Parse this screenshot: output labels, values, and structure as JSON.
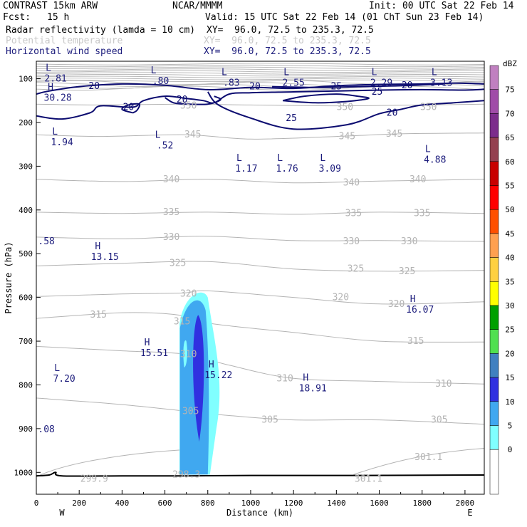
{
  "header": {
    "model": "CONTRAST 15km ARW",
    "org": "NCAR/MMMM",
    "init": "Init: 00 UTC Sat 22 Feb 14",
    "fcst_label": "Fcst:",
    "fcst_value": "15 h",
    "valid": "Valid: 15 UTC Sat 22 Feb 14 (01 ChT Sun 23 Feb 14)",
    "fields": [
      {
        "name": "Radar reflectivity (lamda = 10 cm)",
        "xy": "XY=  96.0, 72.5 to 235.3, 72.5"
      },
      {
        "name": "Potential temperature",
        "xy": "XY=  96.0, 72.5 to 235.3, 72.5"
      },
      {
        "name": "Horizontal wind speed",
        "xy": "XY=  96.0, 72.5 to 235.3, 72.5"
      }
    ]
  },
  "chart_data": {
    "type": "cross-section",
    "xlabel": "Distance (km)",
    "ylabel": "Pressure (hPa)",
    "xlim": [
      0,
      2090
    ],
    "ylim": [
      1050,
      60
    ],
    "x_ticks": [
      0,
      200,
      400,
      600,
      800,
      1000,
      1200,
      1400,
      1600,
      1800,
      2000
    ],
    "y_ticks": [
      100,
      200,
      300,
      400,
      500,
      600,
      700,
      800,
      900,
      1000
    ],
    "x_end_labels": {
      "left": "W",
      "right": "E"
    },
    "colorbar": {
      "unit": "dBZ",
      "levels": [
        {
          "label": "75",
          "color": "#c080c0"
        },
        {
          "label": "70",
          "color": "#a04ca8"
        },
        {
          "label": "65",
          "color": "#7c2c8c"
        },
        {
          "label": "60",
          "color": "#944050"
        },
        {
          "label": "55",
          "color": "#c80000"
        },
        {
          "label": "50",
          "color": "#ff0000"
        },
        {
          "label": "45",
          "color": "#ff5000"
        },
        {
          "label": "40",
          "color": "#ffa050"
        },
        {
          "label": "35",
          "color": "#ffd040"
        },
        {
          "label": "30",
          "color": "#ffff00"
        },
        {
          "label": "25",
          "color": "#00a000"
        },
        {
          "label": "20",
          "color": "#50e050"
        },
        {
          "label": "15",
          "color": "#4080c0"
        },
        {
          "label": "10",
          "color": "#3030e0"
        },
        {
          "label": "5",
          "color": "#40a8f0"
        },
        {
          "label": "0",
          "color": "#80ffff"
        }
      ],
      "bottom_color": "#ffffff"
    },
    "theta_contours": [
      {
        "label": "350",
        "x": [
          0,
          300,
          700,
          1000,
          1400,
          1800,
          2090
        ],
        "p": [
          158,
          160,
          158,
          160,
          162,
          160,
          158
        ]
      },
      {
        "label": "345",
        "x": [
          0,
          300,
          700,
          1000,
          1400,
          1700,
          2090
        ],
        "p": [
          228,
          232,
          228,
          238,
          232,
          226,
          224
        ]
      },
      {
        "label": "340",
        "x": [
          0,
          400,
          800,
          1200,
          1600,
          2090
        ],
        "p": [
          330,
          335,
          330,
          338,
          334,
          330
        ]
      },
      {
        "label": "335",
        "x": [
          0,
          400,
          800,
          1200,
          1600,
          2090
        ],
        "p": [
          405,
          408,
          405,
          410,
          405,
          408
        ]
      },
      {
        "label": "330",
        "x": [
          0,
          400,
          800,
          1200,
          1600,
          2090
        ],
        "p": [
          462,
          466,
          460,
          470,
          470,
          472
        ]
      },
      {
        "label": "325",
        "x": [
          0,
          400,
          800,
          1200,
          1600,
          2090
        ],
        "p": [
          528,
          522,
          518,
          535,
          540,
          538
        ]
      },
      {
        "label": "320",
        "x": [
          0,
          400,
          680,
          800,
          1200,
          1600,
          2090
        ],
        "p": [
          598,
          592,
          590,
          585,
          600,
          615,
          610
        ]
      },
      {
        "label": "315",
        "x": [
          0,
          400,
          660,
          820,
          1200,
          1600,
          2090
        ],
        "p": [
          648,
          635,
          640,
          660,
          680,
          700,
          702
        ]
      },
      {
        "label": "310",
        "x": [
          0,
          400,
          700,
          900,
          1200,
          1600,
          2090
        ],
        "p": [
          712,
          722,
          730,
          755,
          785,
          792,
          798
        ]
      },
      {
        "label": "305",
        "x": [
          0,
          400,
          700,
          900,
          1200,
          1600,
          2090
        ],
        "p": [
          830,
          845,
          860,
          870,
          880,
          880,
          890
        ]
      }
    ],
    "theta_labels": [
      {
        "text": "350",
        "x": 710,
        "p": 162
      },
      {
        "text": "350",
        "x": 1440,
        "p": 165
      },
      {
        "text": "350",
        "x": 1830,
        "p": 165
      },
      {
        "text": "345",
        "x": 730,
        "p": 228
      },
      {
        "text": "345",
        "x": 1450,
        "p": 232
      },
      {
        "text": "345",
        "x": 1670,
        "p": 226
      },
      {
        "text": "340",
        "x": 630,
        "p": 330
      },
      {
        "text": "340",
        "x": 1470,
        "p": 338
      },
      {
        "text": "340",
        "x": 1780,
        "p": 330
      },
      {
        "text": "335",
        "x": 630,
        "p": 405
      },
      {
        "text": "335",
        "x": 1480,
        "p": 408
      },
      {
        "text": "335",
        "x": 1800,
        "p": 408
      },
      {
        "text": "330",
        "x": 630,
        "p": 462
      },
      {
        "text": "330",
        "x": 1470,
        "p": 472
      },
      {
        "text": "330",
        "x": 1740,
        "p": 472
      },
      {
        "text": "325",
        "x": 660,
        "p": 522
      },
      {
        "text": "325",
        "x": 1490,
        "p": 535
      },
      {
        "text": "325",
        "x": 1730,
        "p": 540
      },
      {
        "text": "320",
        "x": 710,
        "p": 592
      },
      {
        "text": "320",
        "x": 1420,
        "p": 600
      },
      {
        "text": "320",
        "x": 1680,
        "p": 615
      },
      {
        "text": "315",
        "x": 290,
        "p": 640
      },
      {
        "text": "315",
        "x": 680,
        "p": 655
      },
      {
        "text": "315",
        "x": 1770,
        "p": 700
      },
      {
        "text": "310",
        "x": 710,
        "p": 730
      },
      {
        "text": "310",
        "x": 1160,
        "p": 785
      },
      {
        "text": "310",
        "x": 1900,
        "p": 798
      },
      {
        "text": "305",
        "x": 720,
        "p": 860
      },
      {
        "text": "305",
        "x": 1090,
        "p": 880
      },
      {
        "text": "305",
        "x": 1880,
        "p": 880
      },
      {
        "text": "299.9",
        "x": 270,
        "p": 1015
      },
      {
        "text": "298.3",
        "x": 700,
        "p": 1005
      },
      {
        "text": "301.1",
        "x": 1550,
        "p": 1015
      },
      {
        "text": "301.1",
        "x": 1830,
        "p": 965
      }
    ],
    "wind_labels": [
      {
        "text": "20",
        "x": 270,
        "p": 117
      },
      {
        "text": "20",
        "x": 430,
        "p": 165
      },
      {
        "text": "20",
        "x": 680,
        "p": 148
      },
      {
        "text": "20",
        "x": 1020,
        "p": 118
      },
      {
        "text": "25",
        "x": 1400,
        "p": 118
      },
      {
        "text": "20",
        "x": 1730,
        "p": 115
      },
      {
        "text": "25",
        "x": 1590,
        "p": 130
      },
      {
        "text": "25",
        "x": 1190,
        "p": 190
      },
      {
        "text": "20",
        "x": 1660,
        "p": 178
      }
    ],
    "extrema": [
      {
        "letter": "L",
        "value": "2.81",
        "x": 90,
        "p": 82,
        "color": "#1c1c7c"
      },
      {
        "letter": "L",
        "value": ".80",
        "x": 580,
        "p": 88,
        "color": "#1c1c7c"
      },
      {
        "letter": "L",
        "value": ".83",
        "x": 910,
        "p": 92,
        "color": "#1c1c7c"
      },
      {
        "letter": "L",
        "value": "2.55",
        "x": 1200,
        "p": 92,
        "color": "#1c1c7c"
      },
      {
        "letter": "L",
        "value": "2.29",
        "x": 1610,
        "p": 92,
        "color": "#1c1c7c"
      },
      {
        "letter": "L",
        "value": "3.13",
        "x": 1890,
        "p": 92,
        "color": "#1c1c7c"
      },
      {
        "letter": "H",
        "value": "30.28",
        "x": 100,
        "p": 126,
        "color": "#1c1c7c"
      },
      {
        "letter": "L",
        "value": "1.94",
        "x": 120,
        "p": 228,
        "color": "#1c1c7c"
      },
      {
        "letter": "L",
        "value": ".52",
        "x": 600,
        "p": 235,
        "color": "#1c1c7c"
      },
      {
        "letter": "L",
        "value": "1.17",
        "x": 980,
        "p": 288,
        "color": "#1c1c7c"
      },
      {
        "letter": "L",
        "value": "1.76",
        "x": 1170,
        "p": 288,
        "color": "#1c1c7c"
      },
      {
        "letter": "L",
        "value": "3.09",
        "x": 1370,
        "p": 288,
        "color": "#1c1c7c"
      },
      {
        "letter": "L",
        "value": "4.88",
        "x": 1860,
        "p": 268,
        "color": "#1c1c7c"
      },
      {
        "letter": "H",
        "value": "13.15",
        "x": 320,
        "p": 490,
        "color": "#1c1c7c"
      },
      {
        "letter": "H",
        "value": "16.07",
        "x": 1790,
        "p": 610,
        "color": "#1c1c7c"
      },
      {
        "letter": "H",
        "value": "15.51",
        "x": 550,
        "p": 710,
        "color": "#1c1c7c"
      },
      {
        "letter": "H",
        "value": "15.22",
        "x": 850,
        "p": 760,
        "color": "#1c1c7c"
      },
      {
        "letter": "H",
        "value": "18.91",
        "x": 1290,
        "p": 790,
        "color": "#1c1c7c"
      },
      {
        "letter": "L",
        "value": "7.20",
        "x": 130,
        "p": 768,
        "color": "#1c1c7c"
      }
    ],
    "edge_values": [
      {
        "text": ".58",
        "x": 8,
        "p": 472
      },
      {
        "text": ".08",
        "x": 8,
        "p": 902
      }
    ]
  }
}
